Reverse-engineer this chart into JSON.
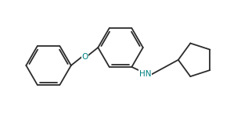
{
  "background": "#ffffff",
  "line_color": "#2b2b2b",
  "line_width": 1.3,
  "label_color": "#008080",
  "figsize": [
    3.08,
    1.45
  ],
  "dpi": 100,
  "xlim": [
    0,
    10
  ],
  "ylim": [
    0,
    5
  ]
}
